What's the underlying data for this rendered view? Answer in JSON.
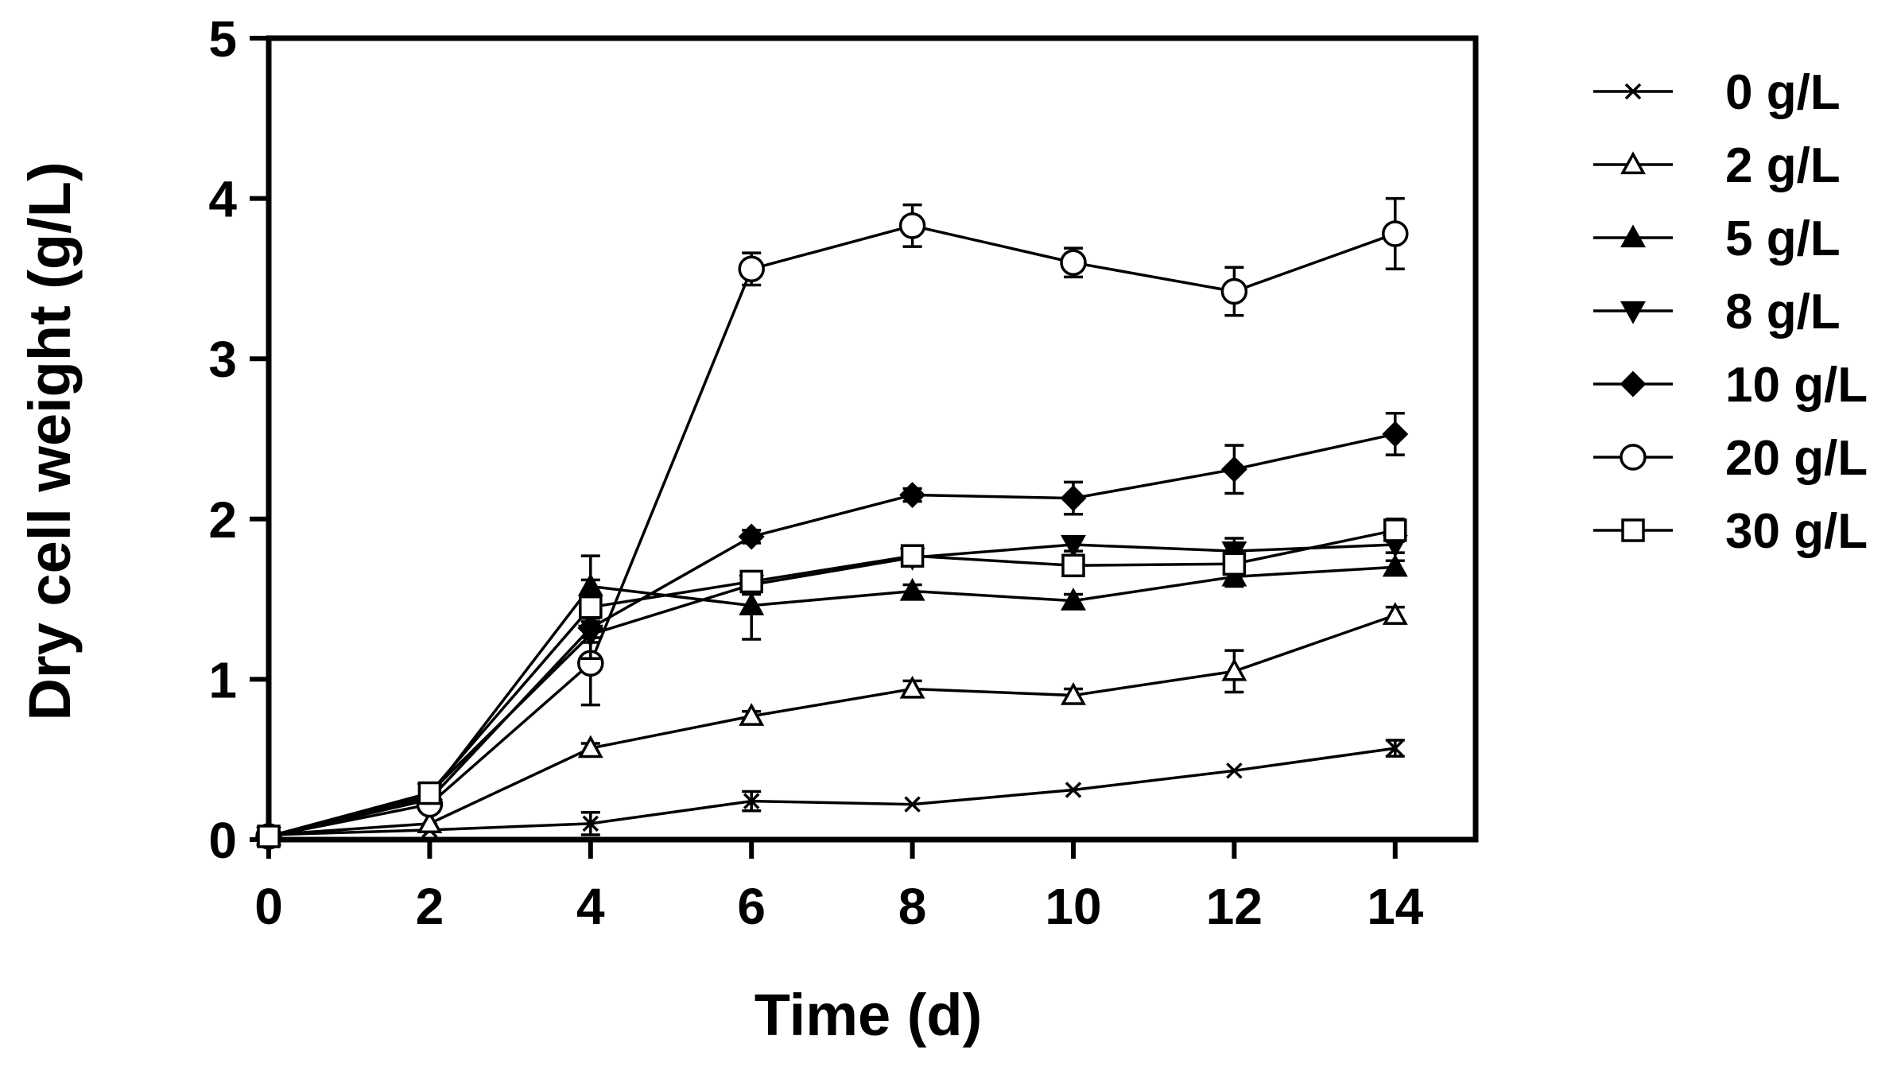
{
  "chart_data": {
    "type": "line",
    "title": "",
    "xlabel": "Time (d)",
    "ylabel": "Dry cell weight (g/L)",
    "xlim": [
      0,
      15
    ],
    "ylim": [
      0,
      5
    ],
    "xticks": [
      0,
      2,
      4,
      6,
      8,
      10,
      12,
      14
    ],
    "xtick_labels": [
      "0",
      "2",
      "4",
      "6",
      "8",
      "10",
      "12",
      "14"
    ],
    "yticks": [
      0,
      1,
      2,
      3,
      4,
      5
    ],
    "ytick_labels": [
      "0",
      "1",
      "2",
      "3",
      "4",
      "5"
    ],
    "grid": false,
    "legend_position": "right",
    "x": [
      0,
      2,
      4,
      6,
      8,
      10,
      12,
      14
    ],
    "series": [
      {
        "name": "0 g/L",
        "marker": "x",
        "values": [
          0.03,
          0.06,
          0.1,
          0.24,
          0.22,
          0.31,
          0.43,
          0.57
        ],
        "errors": [
          0.01,
          0.01,
          0.07,
          0.06,
          0.02,
          0.02,
          0.02,
          0.05
        ]
      },
      {
        "name": "2 g/L",
        "marker": "triangle-open",
        "values": [
          0.03,
          0.1,
          0.57,
          0.77,
          0.94,
          0.9,
          1.05,
          1.4
        ],
        "errors": [
          0.01,
          0.02,
          0.03,
          0.03,
          0.05,
          0.04,
          0.13,
          0.05
        ]
      },
      {
        "name": "5 g/L",
        "marker": "triangle-filled",
        "values": [
          0.02,
          0.27,
          1.58,
          1.46,
          1.55,
          1.49,
          1.64,
          1.7
        ],
        "errors": [
          0.01,
          0.04,
          0.04,
          0.21,
          0.04,
          0.04,
          0.06,
          0.04
        ]
      },
      {
        "name": "8 g/L",
        "marker": "triangle-down-filled",
        "values": [
          0.02,
          0.29,
          1.28,
          1.59,
          1.76,
          1.84,
          1.8,
          1.84
        ],
        "errors": [
          0.01,
          0.04,
          0.05,
          0.06,
          0.05,
          0.04,
          0.08,
          0.05
        ]
      },
      {
        "name": "10 g/L",
        "marker": "diamond-filled",
        "values": [
          0.02,
          0.25,
          1.32,
          1.89,
          2.15,
          2.13,
          2.31,
          2.53
        ],
        "errors": [
          0.01,
          0.04,
          0.06,
          0.04,
          0.04,
          0.1,
          0.15,
          0.13
        ]
      },
      {
        "name": "20 g/L",
        "marker": "circle-open",
        "values": [
          0.02,
          0.22,
          1.1,
          3.56,
          3.83,
          3.6,
          3.42,
          3.78
        ],
        "errors": [
          0.01,
          0.05,
          0.26,
          0.1,
          0.13,
          0.09,
          0.15,
          0.22
        ]
      },
      {
        "name": "30 g/L",
        "marker": "square-open",
        "values": [
          0.02,
          0.29,
          1.45,
          1.61,
          1.77,
          1.71,
          1.72,
          1.93
        ],
        "errors": [
          0.01,
          0.04,
          0.32,
          0.04,
          0.04,
          0.06,
          0.05,
          0.07
        ]
      }
    ]
  }
}
